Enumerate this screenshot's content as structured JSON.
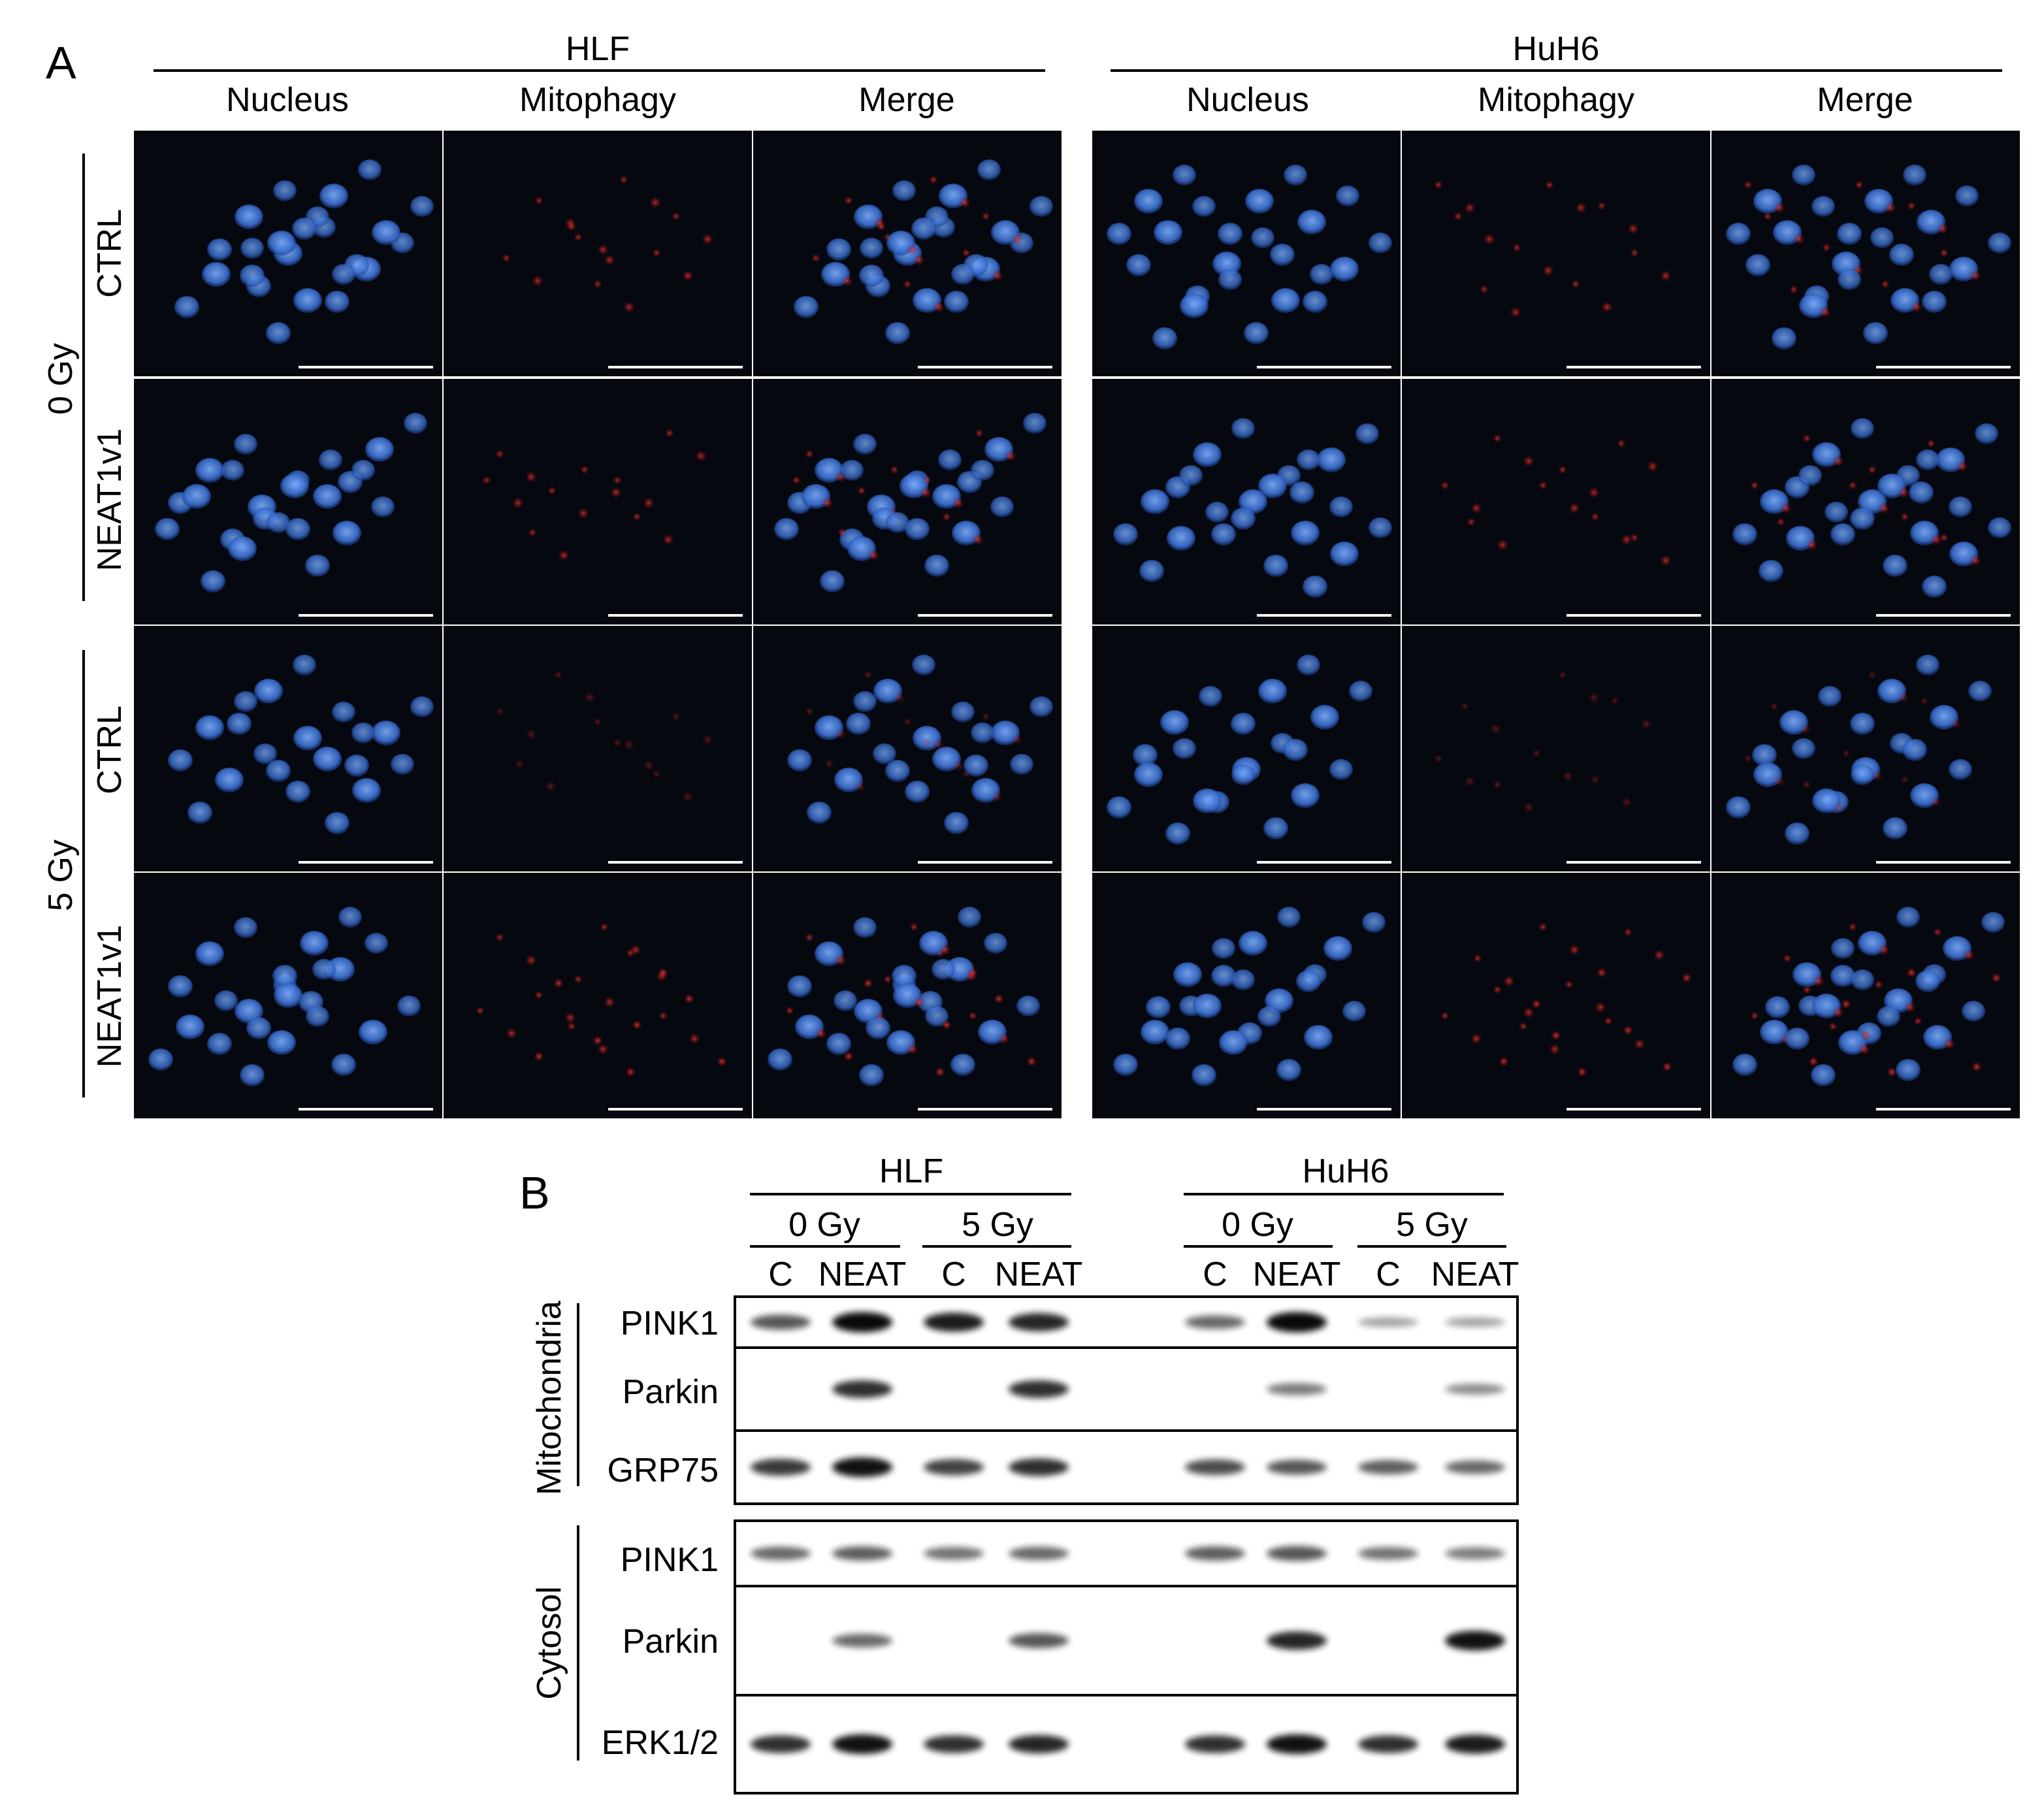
{
  "panel_a": {
    "label": "A",
    "cell_lines": [
      {
        "name": "HLF",
        "columns": [
          "Nucleus",
          "Mitophagy",
          "Merge"
        ],
        "cells_row1": [
          [
            0,
            0
          ],
          [
            120,
            30
          ],
          [
            -60,
            -70
          ],
          [
            150,
            -40
          ],
          [
            -110,
            40
          ],
          [
            30,
            90
          ],
          [
            -10,
            -20
          ],
          [
            70,
            -110
          ]
        ],
        "cells_row2": [
          [
            -40,
            10
          ],
          [
            90,
            60
          ],
          [
            -120,
            -60
          ],
          [
            140,
            -100
          ],
          [
            10,
            -30
          ],
          [
            -70,
            90
          ],
          [
            60,
            -10
          ],
          [
            -140,
            -10
          ]
        ],
        "cells_row3": [
          [
            30,
            -20
          ],
          [
            -90,
            60
          ],
          [
            120,
            80
          ],
          [
            -30,
            -110
          ],
          [
            150,
            -30
          ],
          [
            -120,
            -40
          ],
          [
            60,
            20
          ]
        ],
        "cells_row4": [
          [
            -60,
            30
          ],
          [
            80,
            -50
          ],
          [
            -10,
            90
          ],
          [
            130,
            70
          ],
          [
            -120,
            -80
          ],
          [
            40,
            -100
          ],
          [
            0,
            0
          ],
          [
            -150,
            60
          ]
        ]
      },
      {
        "name": "HuH6",
        "columns": [
          "Nucleus",
          "Mitophagy",
          "Merge"
        ],
        "cells_row1": [
          [
            -30,
            20
          ],
          [
            100,
            -60
          ],
          [
            -120,
            -40
          ],
          [
            60,
            90
          ],
          [
            150,
            30
          ],
          [
            -80,
            100
          ],
          [
            20,
            -100
          ],
          [
            -150,
            -100
          ]
        ],
        "cells_row2": [
          [
            10,
            0
          ],
          [
            -100,
            70
          ],
          [
            130,
            -80
          ],
          [
            -60,
            -90
          ],
          [
            90,
            60
          ],
          [
            -140,
            0
          ],
          [
            40,
            -30
          ],
          [
            150,
            100
          ]
        ],
        "cells_row3": [
          [
            0,
            40
          ],
          [
            -110,
            -50
          ],
          [
            120,
            -60
          ],
          [
            -60,
            100
          ],
          [
            90,
            90
          ],
          [
            -150,
            50
          ],
          [
            40,
            -110
          ]
        ],
        "cells_row4": [
          [
            50,
            10
          ],
          [
            -90,
            -40
          ],
          [
            -20,
            90
          ],
          [
            140,
            -90
          ],
          [
            110,
            80
          ],
          [
            -140,
            70
          ],
          [
            10,
            -100
          ],
          [
            -60,
            20
          ]
        ]
      }
    ],
    "dose_groups": [
      {
        "dose": "0 Gy",
        "rows": [
          "CTRL",
          "NEAT1v1"
        ]
      },
      {
        "dose": "5 Gy",
        "rows": [
          "CTRL",
          "NEAT1v1"
        ]
      }
    ],
    "colors": {
      "nucleus": "#3a6fd0",
      "mitophagy": "#c41414",
      "background": "#05080f"
    }
  },
  "panel_b": {
    "label": "B",
    "cell_lines": [
      {
        "name": "HLF",
        "doses": [
          {
            "dose": "0 Gy",
            "lanes": [
              "C",
              "NEAT"
            ]
          },
          {
            "dose": "5 Gy",
            "lanes": [
              "C",
              "NEAT"
            ]
          }
        ]
      },
      {
        "name": "HuH6",
        "doses": [
          {
            "dose": "0 Gy",
            "lanes": [
              "C",
              "NEAT"
            ]
          },
          {
            "dose": "5 Gy",
            "lanes": [
              "C",
              "NEAT"
            ]
          }
        ]
      }
    ],
    "fractions": [
      {
        "name": "Mitochondria",
        "blots": [
          {
            "protein": "PINK1",
            "intensity": [
              0.55,
              0.95,
              0.85,
              0.8,
              0.45,
              0.95,
              0.15,
              0.15
            ]
          },
          {
            "protein": "Parkin",
            "intensity": [
              0.0,
              0.75,
              0.0,
              0.75,
              0.0,
              0.35,
              0.0,
              0.25
            ]
          },
          {
            "protein": "GRP75",
            "intensity": [
              0.7,
              0.9,
              0.65,
              0.75,
              0.6,
              0.55,
              0.5,
              0.45
            ]
          }
        ]
      },
      {
        "name": "Cytosol",
        "blots": [
          {
            "protein": "PINK1",
            "intensity": [
              0.45,
              0.5,
              0.4,
              0.45,
              0.5,
              0.55,
              0.4,
              0.35
            ]
          },
          {
            "protein": "Parkin",
            "intensity": [
              0.0,
              0.45,
              0.0,
              0.55,
              0.0,
              0.8,
              0.0,
              0.9
            ]
          },
          {
            "protein": "ERK1/2",
            "intensity": [
              0.75,
              0.9,
              0.75,
              0.8,
              0.75,
              0.9,
              0.75,
              0.85
            ]
          }
        ]
      }
    ]
  }
}
